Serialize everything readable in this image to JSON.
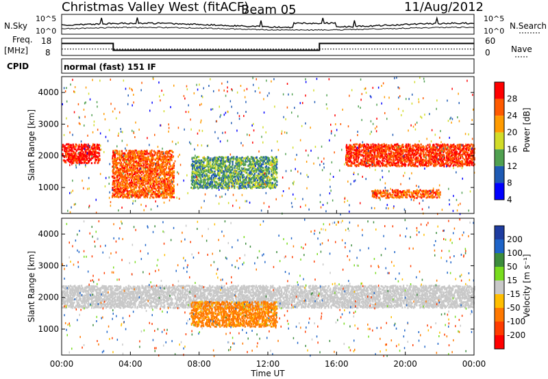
{
  "header": {
    "title": "Christmas Valley West (fitACF)",
    "beam": "Beam 05",
    "date": "11/Aug/2012"
  },
  "noise_panel": {
    "left_label": "N.Sky",
    "right_label": "N.Search",
    "tick_top": "10^5",
    "tick_bottom": "10^0"
  },
  "freq_panel": {
    "left_label_1": "Freq.",
    "left_label_2": "[MHz]",
    "right_label": "Nave",
    "left_ticks": [
      "18",
      "8"
    ],
    "right_ticks": [
      "60",
      "0"
    ]
  },
  "cpid_panel": {
    "label": "CPID",
    "value": "normal (fast) 151 IF"
  },
  "power_panel": {
    "ylabel": "Slant Range [km]",
    "cbar_label": "Power [dB]",
    "cbar_ticks": [
      "28",
      "24",
      "20",
      "16",
      "12",
      "8",
      "4"
    ],
    "cbar_colors": [
      "#ff0000",
      "#ff5a00",
      "#ff9b00",
      "#d2dc28",
      "#50a050",
      "#1e5ab4",
      "#0000ff"
    ]
  },
  "velocity_panel": {
    "ylabel": "Slant Range [km]",
    "cbar_label": "Velocity [m s⁻¹]",
    "cbar_ticks": [
      "200",
      "100",
      "50",
      "15",
      "-15",
      "-50",
      "-100",
      "-200"
    ],
    "cbar_colors": [
      "#1e3ca0",
      "#1e64c8",
      "#3c8c3c",
      "#78dc1e",
      "#c8c8c8",
      "#ffbe00",
      "#ff7800",
      "#ff3c00",
      "#ff0000"
    ]
  },
  "xaxis": {
    "label": "Time UT",
    "ticks": [
      "00:00",
      "04:00",
      "08:00",
      "12:00",
      "16:00",
      "20:00",
      "00:00"
    ]
  },
  "chart_data": {
    "type": "heatmap",
    "title": "Christmas Valley West (fitACF)",
    "subtitle": "Beam 05",
    "date": "11/Aug/2012",
    "xlabel": "Time UT",
    "xlim_hours": [
      0,
      24
    ],
    "ylabel": "Slant Range [km]",
    "ylim_km": [
      180,
      4500
    ],
    "ytick_values": [
      1000,
      2000,
      3000,
      4000
    ],
    "freq_mhz": {
      "ylim": [
        8,
        18
      ],
      "segments": [
        {
          "start_hour": 0,
          "end_hour": 3,
          "value": 15
        },
        {
          "start_hour": 3,
          "end_hour": 15,
          "value": 11
        },
        {
          "start_hour": 15,
          "end_hour": 24,
          "value": 15
        }
      ]
    },
    "nave": {
      "ylim": [
        0,
        60
      ],
      "value": 22
    },
    "power_db": {
      "colorbar_ticks": [
        4,
        8,
        12,
        16,
        20,
        24,
        28
      ],
      "features": [
        {
          "start_hour": 0.0,
          "end_hour": 2.2,
          "range_start_km": 1800,
          "range_end_km": 2400,
          "level_db": 28
        },
        {
          "start_hour": 2.9,
          "end_hour": 6.5,
          "range_start_km": 700,
          "range_end_km": 2200,
          "level_db": 24
        },
        {
          "start_hour": 7.5,
          "end_hour": 12.5,
          "range_start_km": 1000,
          "range_end_km": 2000,
          "level_db": 12
        },
        {
          "start_hour": 16.5,
          "end_hour": 24.0,
          "range_start_km": 1700,
          "range_end_km": 2400,
          "level_db": 26
        },
        {
          "start_hour": 18.0,
          "end_hour": 22.0,
          "range_start_km": 700,
          "range_end_km": 950,
          "level_db": 24
        }
      ]
    },
    "velocity_ms": {
      "colorbar_ticks": [
        -200,
        -100,
        -50,
        -15,
        15,
        50,
        100,
        200
      ],
      "features": [
        {
          "start_hour": 0.0,
          "end_hour": 24.0,
          "range_start_km": 1700,
          "range_end_km": 2400,
          "level_ms": 0
        },
        {
          "start_hour": 7.5,
          "end_hour": 12.5,
          "range_start_km": 1100,
          "range_end_km": 1900,
          "level_ms": -60
        }
      ]
    }
  }
}
